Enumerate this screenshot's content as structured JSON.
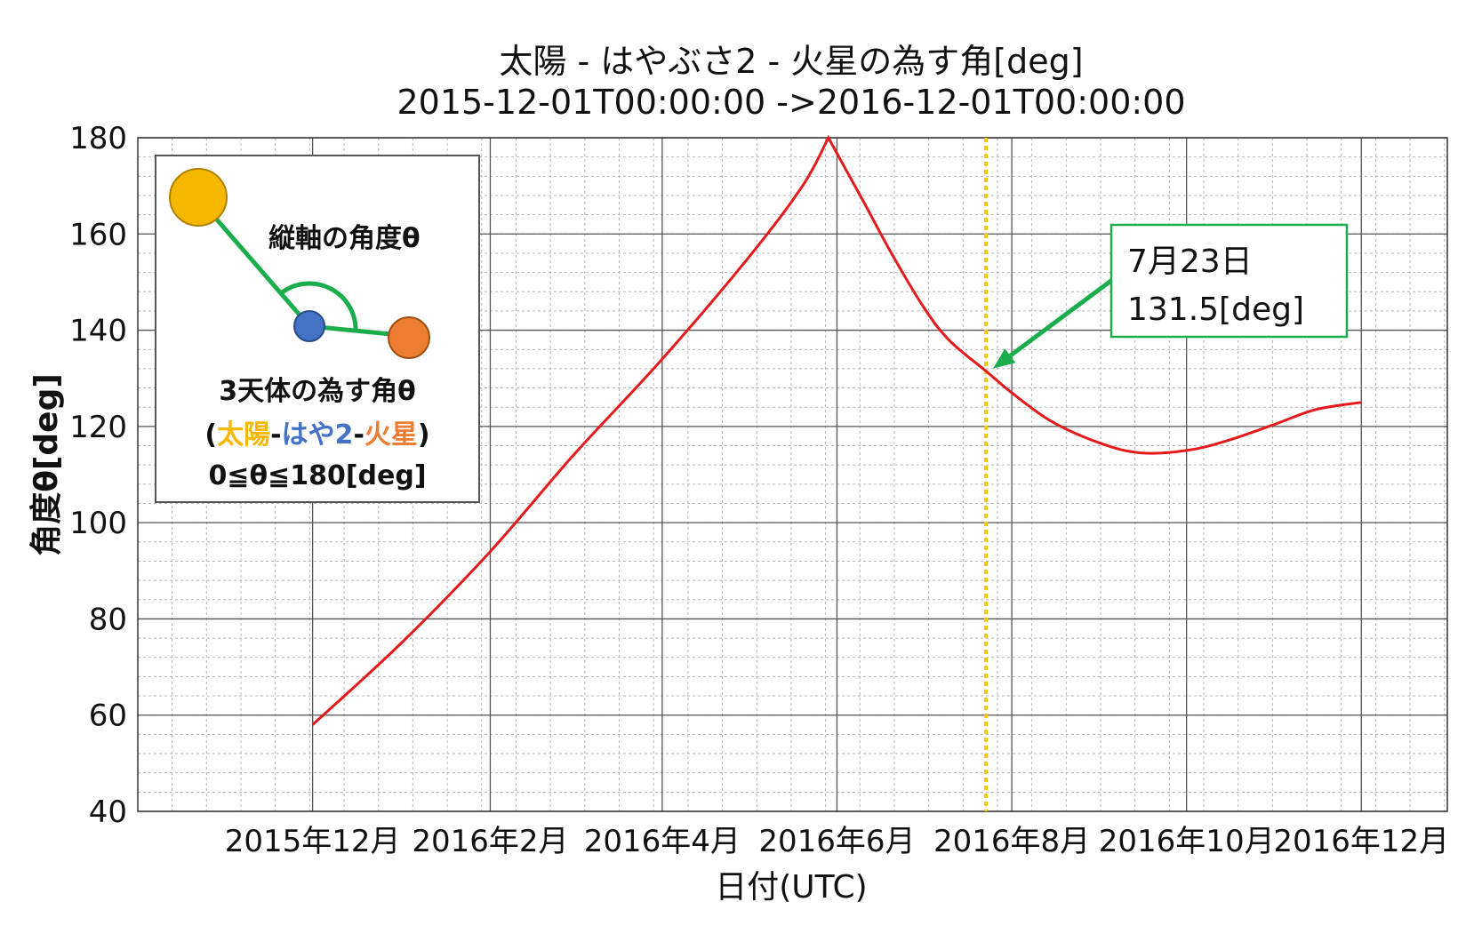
{
  "chart_data": {
    "type": "line",
    "title": "太陽 - はやぶさ2 - 火星の為す角[deg]",
    "subtitle": "2015-12-01T00:00:00 ->2016-12-01T00:00:00",
    "xlabel": "日付(UTC)",
    "ylabel": "角度θ[deg]",
    "ylim": [
      40,
      180
    ],
    "xlim": [
      "2015-10-01",
      "2016-12-31"
    ],
    "y_ticks": [
      40,
      60,
      80,
      100,
      120,
      140,
      160,
      180
    ],
    "x_ticks": [
      {
        "date": "2015-12-01",
        "label": "2015年12月"
      },
      {
        "date": "2016-02-01",
        "label": "2016年2月"
      },
      {
        "date": "2016-04-01",
        "label": "2016年4月"
      },
      {
        "date": "2016-06-01",
        "label": "2016年6月"
      },
      {
        "date": "2016-08-01",
        "label": "2016年8月"
      },
      {
        "date": "2016-10-01",
        "label": "2016年10月"
      },
      {
        "date": "2016-12-01",
        "label": "2016年12月"
      }
    ],
    "grid": true,
    "series": [
      {
        "color": "#e41a1c",
        "x": [
          "2015-12-01",
          "2016-01-01",
          "2016-02-01",
          "2016-03-01",
          "2016-04-01",
          "2016-05-01",
          "2016-05-20",
          "2016-05-29",
          "2016-06-10",
          "2016-06-20",
          "2016-07-01",
          "2016-07-10",
          "2016-07-23",
          "2016-08-01",
          "2016-08-15",
          "2016-09-01",
          "2016-09-15",
          "2016-10-01",
          "2016-10-15",
          "2016-11-01",
          "2016-11-15",
          "2016-12-01"
        ],
        "y": [
          58,
          75,
          94,
          114,
          134,
          155,
          170,
          180,
          167,
          156,
          145,
          138,
          131.5,
          127,
          121,
          116.5,
          114.5,
          115,
          117,
          120.5,
          123.5,
          125
        ]
      }
    ],
    "marker_line": {
      "date": "2016-07-23",
      "color": "#f5c518",
      "style": "dotted"
    },
    "callout": {
      "line1": "7月23日",
      "line2": "131.5[deg]",
      "point": {
        "date": "2016-07-23",
        "value": 131.5
      },
      "arrow_color": "#1aad4b",
      "border_color": "#1aad4b"
    },
    "legend": {
      "position": "top-left",
      "vertical_axis_label": "縦軸の角度θ",
      "line1": "3天体の為す角θ",
      "paren_open": "(",
      "sun": "太陽",
      "dash1": "-",
      "hayabusa": "はや2",
      "dash2": "-",
      "mars": "火星",
      "paren_close": ")",
      "range": "0≦θ≦180[deg]",
      "colors": {
        "sun": "#f5b700",
        "hayabusa": "#4472c4",
        "mars": "#ed7d31",
        "arm": "#1aad4b"
      }
    }
  }
}
